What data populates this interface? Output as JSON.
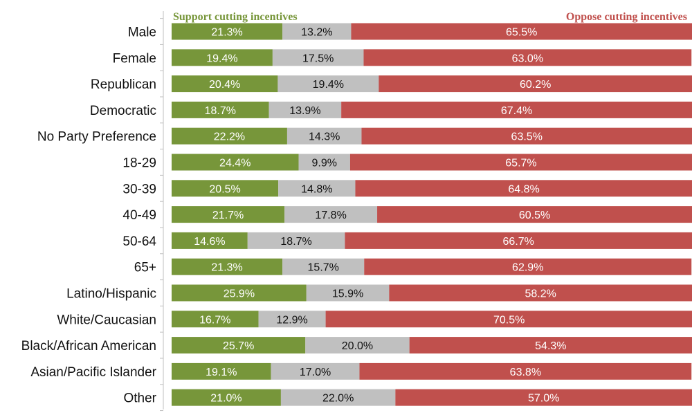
{
  "chart_data": {
    "type": "bar",
    "orientation": "horizontal",
    "stacked": true,
    "categories": [
      "Male",
      "Female",
      "Republican",
      "Democratic",
      "No Party Preference",
      "18-29",
      "30-39",
      "40-49",
      "50-64",
      "65+",
      "Latino/Hispanic",
      "White/Caucasian",
      "Black/African American",
      "Asian/Pacific Islander",
      "Other"
    ],
    "series": [
      {
        "name": "Support cutting incentives",
        "color": "#77963a",
        "label_color": "#ffffff",
        "values": [
          21.3,
          19.4,
          20.4,
          18.7,
          22.2,
          24.4,
          20.5,
          21.7,
          14.6,
          21.3,
          25.9,
          16.7,
          25.7,
          19.1,
          21.0
        ],
        "labels": [
          "21.3%",
          "19.4%",
          "20.4%",
          "18.7%",
          "22.2%",
          "24.4%",
          "20.5%",
          "21.7%",
          "14.6%",
          "21.3%",
          "25.9%",
          "16.7%",
          "25.7%",
          "19.1%",
          "21.0%"
        ]
      },
      {
        "name": "",
        "color": "#c0c0c0",
        "label_color": "#111111",
        "values": [
          13.2,
          17.5,
          19.4,
          13.9,
          14.3,
          9.9,
          14.8,
          17.8,
          18.7,
          15.7,
          15.9,
          12.9,
          20.0,
          17.0,
          22.0
        ],
        "labels": [
          "13.2%",
          "17.5%",
          "19.4%",
          "13.9%",
          "14.3%",
          "9.9%",
          "14.8%",
          "17.8%",
          "18.7%",
          "15.7%",
          "15.9%",
          "12.9%",
          "20.0%",
          "17.0%",
          "22.0%"
        ]
      },
      {
        "name": "Oppose cutting incentives",
        "color": "#c0504d",
        "label_color": "#ffffff",
        "values": [
          65.5,
          63.0,
          60.2,
          67.4,
          63.5,
          65.7,
          64.8,
          60.5,
          66.7,
          62.9,
          58.2,
          70.5,
          54.3,
          63.8,
          57.0
        ],
        "labels": [
          "65.5%",
          "63.0%",
          "60.2%",
          "67.4%",
          "63.5%",
          "65.7%",
          "64.8%",
          "60.5%",
          "66.7%",
          "62.9%",
          "58.2%",
          "70.5%",
          "54.3%",
          "63.8%",
          "57.0%"
        ]
      }
    ],
    "xlim": [
      0,
      100
    ],
    "grid": false
  }
}
